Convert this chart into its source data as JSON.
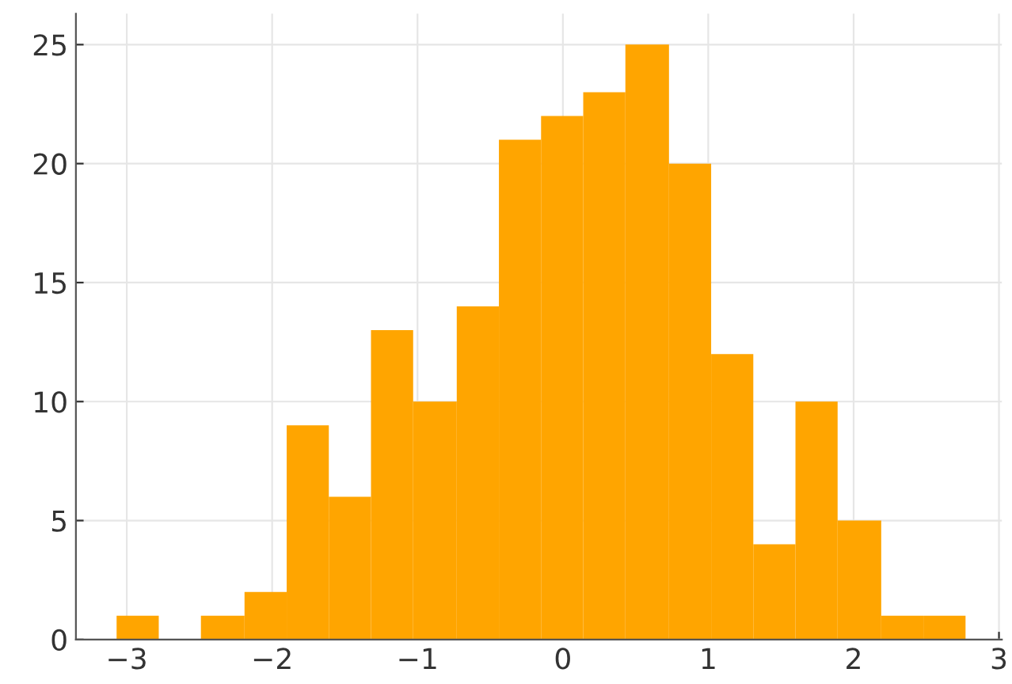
{
  "chart_data": {
    "type": "histogram",
    "bins": [
      -3.07,
      -2.78,
      -2.49,
      -2.19,
      -1.9,
      -1.61,
      -1.32,
      -1.03,
      -0.73,
      -0.44,
      -0.15,
      0.14,
      0.43,
      0.73,
      1.02,
      1.31,
      1.6,
      1.89,
      2.19,
      2.48,
      2.77
    ],
    "values": [
      1,
      0,
      1,
      2,
      9,
      6,
      13,
      10,
      14,
      21,
      22,
      23,
      25,
      20,
      12,
      4,
      10,
      5,
      1,
      1
    ],
    "color": "#ffa500",
    "xlim": [
      -3.35,
      3.02
    ],
    "ylim": [
      0,
      26.3
    ],
    "xticks": [
      {
        "value": -3,
        "label": "−3"
      },
      {
        "value": -2,
        "label": "−2"
      },
      {
        "value": -1,
        "label": "−1"
      },
      0,
      1,
      2,
      3
    ],
    "yticks": [
      0,
      5,
      10,
      15,
      20,
      25
    ],
    "grid": true
  }
}
